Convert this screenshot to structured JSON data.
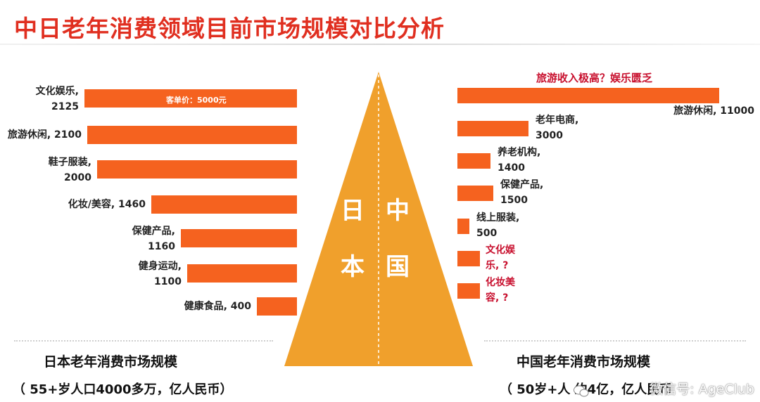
{
  "title": "中日老年消费领域目前市场规模对比分析",
  "pyramid": {
    "left_chars": [
      "日",
      "本"
    ],
    "right_chars": [
      "中",
      "国"
    ],
    "color": "#f0a02c"
  },
  "bar_color": "#f5621f",
  "chart_data": [
    {
      "type": "bar",
      "orientation": "horizontal",
      "side": "japan",
      "title": "日本老年消费市场规模",
      "note": "（ 55+岁人口4000多万，亿人民币）",
      "bar_annotation": "客单价：5000元",
      "categories": [
        "文化娱乐",
        "旅游休闲",
        "鞋子服装",
        "化妆/美容",
        "保健产品",
        "健身运动",
        "健康食品"
      ],
      "values": [
        2125,
        2100,
        2000,
        1460,
        1160,
        1100,
        400
      ],
      "labels": [
        "文化娱乐,\n2125",
        "旅游休闲, 2100",
        "鞋子服装,\n2000",
        "化妆/美容, 1460",
        "保健产品,\n1160",
        "健身运动,\n1100",
        "健康食品, 400"
      ]
    },
    {
      "type": "bar",
      "orientation": "horizontal",
      "side": "china",
      "title": "中国老年消费市场规模",
      "note": "（ 50岁+人 约4亿，亿人民币",
      "headline": "旅游收入极高？娱乐匮乏",
      "categories": [
        "旅游休闲",
        "老年电商",
        "养老机构",
        "保健产品",
        "线上服装",
        "文化娱乐",
        "化妆美容"
      ],
      "values": [
        11000,
        3000,
        1400,
        1500,
        500,
        null,
        null
      ],
      "labels": [
        "旅游休闲, 11000",
        "老年电商,\n3000",
        "养老机构,\n1400",
        "保健产品,\n1500",
        "线上服装,\n500",
        "文化娱\n乐, ?",
        "化妆美\n容, ?"
      ]
    }
  ],
  "watermark": "微信号: AgeClub"
}
